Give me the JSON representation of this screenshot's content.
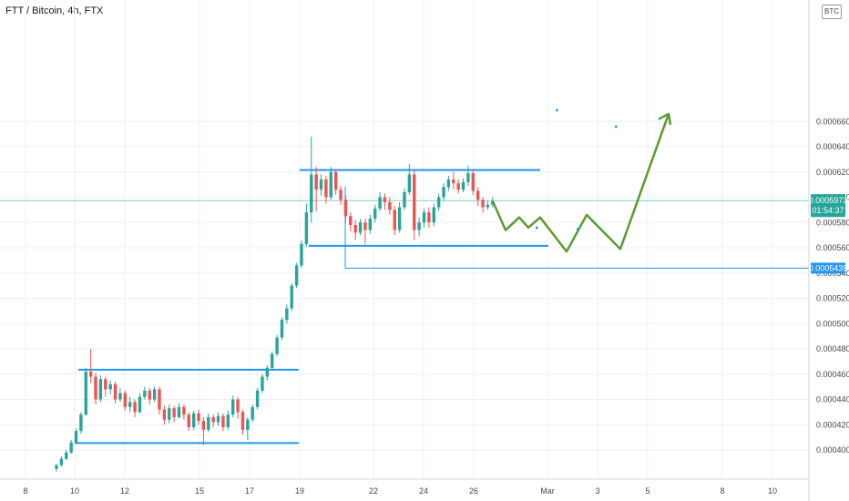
{
  "header": {
    "title": "FTT / Bitcoin, 4h, FTX",
    "currency_badge": "BTC"
  },
  "colors": {
    "up": "#26a69a",
    "down": "#ef5350",
    "channel": "#2196f3",
    "projection": "#5b9b32",
    "price_line": "#26a69a",
    "grid": "#eef0f3"
  },
  "chart_data": {
    "type": "candlestick",
    "title": "FTT / Bitcoin, 4h, FTX",
    "x_tick_labels": [
      "8",
      "10",
      "12",
      "15",
      "17",
      "19",
      "22",
      "24",
      "26",
      "Mar",
      "3",
      "5",
      "8",
      "10"
    ],
    "y_tick_labels": [
      "0.0004000",
      "0.0004200",
      "0.0004400",
      "0.0004600",
      "0.0004800",
      "0.0005000",
      "0.0005200",
      "0.0005400",
      "0.0005600",
      "0.0005800",
      "0.0006000",
      "0.0006200",
      "0.0006400",
      "0.0006600"
    ],
    "y_range": [
      0.000386,
      0.000672
    ],
    "last_price": {
      "value": "0.0005973",
      "countdown": "01:54:37"
    },
    "marked_level": {
      "value": "0.0005439"
    },
    "candles": [
      [
        0.000385,
        0.000388,
        0.000383,
        0.000389
      ],
      [
        0.000388,
        0.000393,
        0.000387,
        0.000395
      ],
      [
        0.000393,
        0.000398,
        0.000392,
        0.0004
      ],
      [
        0.000398,
        0.000406,
        0.000397,
        0.000408
      ],
      [
        0.000406,
        0.000415,
        0.000405,
        0.000417
      ],
      [
        0.000415,
        0.000428,
        0.000413,
        0.00043
      ],
      [
        0.000428,
        0.000462,
        0.000427,
        0.000465
      ],
      [
        0.000462,
        0.000458,
        0.000453,
        0.00048
      ],
      [
        0.000458,
        0.00044,
        0.000436,
        0.000461
      ],
      [
        0.00044,
        0.000456,
        0.000438,
        0.000459
      ],
      [
        0.000456,
        0.000448,
        0.000442,
        0.000458
      ],
      [
        0.000448,
        0.000452,
        0.000444,
        0.000455
      ],
      [
        0.000452,
        0.00044,
        0.000437,
        0.000454
      ],
      [
        0.00044,
        0.000445,
        0.000438,
        0.000449
      ],
      [
        0.000445,
        0.000434,
        0.000431,
        0.000447
      ],
      [
        0.000434,
        0.000438,
        0.00043,
        0.000442
      ],
      [
        0.000438,
        0.00043,
        0.000426,
        0.00044
      ],
      [
        0.00043,
        0.000442,
        0.000429,
        0.000445
      ],
      [
        0.000442,
        0.000447,
        0.00044,
        0.00045
      ],
      [
        0.000447,
        0.00044,
        0.000436,
        0.000449
      ],
      [
        0.00044,
        0.000448,
        0.000438,
        0.00045
      ],
      [
        0.000448,
        0.000432,
        0.000428,
        0.00045
      ],
      [
        0.000432,
        0.000424,
        0.00042,
        0.000435
      ],
      [
        0.000424,
        0.000433,
        0.000421,
        0.000436
      ],
      [
        0.000433,
        0.000426,
        0.000422,
        0.000435
      ],
      [
        0.000426,
        0.000434,
        0.000425,
        0.000437
      ],
      [
        0.000434,
        0.000428,
        0.000424,
        0.000436
      ],
      [
        0.000428,
        0.000418,
        0.000415,
        0.00043
      ],
      [
        0.000418,
        0.000429,
        0.000416,
        0.000431
      ],
      [
        0.000429,
        0.000423,
        0.00042,
        0.000432
      ],
      [
        0.000423,
        0.000416,
        0.000404,
        0.000426
      ],
      [
        0.000416,
        0.000426,
        0.000414,
        0.000429
      ],
      [
        0.000426,
        0.000422,
        0.000418,
        0.000428
      ],
      [
        0.000422,
        0.000427,
        0.000419,
        0.00043
      ],
      [
        0.000427,
        0.000418,
        0.000415,
        0.000429
      ],
      [
        0.000418,
        0.000428,
        0.000416,
        0.000431
      ],
      [
        0.000428,
        0.00044,
        0.000426,
        0.000443
      ],
      [
        0.00044,
        0.00043,
        0.000425,
        0.000442
      ],
      [
        0.00043,
        0.000416,
        0.000412,
        0.000432
      ],
      [
        0.000416,
        0.000424,
        0.000408,
        0.000426
      ],
      [
        0.000424,
        0.000434,
        0.000422,
        0.000436
      ],
      [
        0.000434,
        0.000447,
        0.000432,
        0.000449
      ],
      [
        0.000447,
        0.000458,
        0.000445,
        0.00046
      ],
      [
        0.000458,
        0.000465,
        0.000455,
        0.000467
      ],
      [
        0.000465,
        0.000476,
        0.000463,
        0.000478
      ],
      [
        0.000476,
        0.000489,
        0.000474,
        0.000491
      ],
      [
        0.000489,
        0.000503,
        0.000487,
        0.000505
      ],
      [
        0.000503,
        0.000512,
        0.0005,
        0.000515
      ],
      [
        0.000512,
        0.00053,
        0.00051,
        0.000532
      ],
      [
        0.00053,
        0.000546,
        0.000528,
        0.000548
      ],
      [
        0.000546,
        0.000563,
        0.000544,
        0.000566
      ],
      [
        0.000563,
        0.000588,
        0.000561,
        0.000595
      ],
      [
        0.000588,
        0.000618,
        0.00058,
        0.000648
      ],
      [
        0.000618,
        0.000606,
        0.000589,
        0.000624
      ],
      [
        0.000606,
        0.000614,
        0.000601,
        0.000618
      ],
      [
        0.000614,
        0.0006,
        0.000595,
        0.000617
      ],
      [
        0.0006,
        0.00062,
        0.000598,
        0.000624
      ],
      [
        0.00062,
        0.000606,
        0.000602,
        0.000622
      ],
      [
        0.000606,
        0.000598,
        0.000594,
        0.000609
      ],
      [
        0.000598,
        0.000585,
        0.00058,
        0.000602
      ],
      [
        0.000585,
        0.000578,
        0.000573,
        0.000588
      ],
      [
        0.000578,
        0.000572,
        0.000566,
        0.000582
      ],
      [
        0.000572,
        0.00058,
        0.00057,
        0.000583
      ],
      [
        0.00058,
        0.000574,
        0.000563,
        0.000583
      ],
      [
        0.000574,
        0.000583,
        0.000571,
        0.000586
      ],
      [
        0.000583,
        0.000591,
        0.00058,
        0.000594
      ],
      [
        0.000591,
        0.0006,
        0.000589,
        0.000604
      ],
      [
        0.0006,
        0.000596,
        0.00059,
        0.000603
      ],
      [
        0.000596,
        0.00059,
        0.000586,
        0.0006
      ],
      [
        0.00059,
        0.000574,
        0.00057,
        0.000593
      ],
      [
        0.000574,
        0.000592,
        0.000572,
        0.000596
      ],
      [
        0.000592,
        0.000604,
        0.00059,
        0.000607
      ],
      [
        0.000604,
        0.000618,
        0.000602,
        0.000626
      ],
      [
        0.000618,
        0.000574,
        0.000566,
        0.000621
      ],
      [
        0.000574,
        0.00058,
        0.000569,
        0.000584
      ],
      [
        0.00058,
        0.000588,
        0.000576,
        0.000591
      ],
      [
        0.000588,
        0.00058,
        0.000576,
        0.000592
      ],
      [
        0.00058,
        0.000592,
        0.000577,
        0.000595
      ],
      [
        0.000592,
        0.0006,
        0.000589,
        0.000603
      ],
      [
        0.0006,
        0.000608,
        0.000597,
        0.000611
      ],
      [
        0.000608,
        0.000614,
        0.000605,
        0.000617
      ],
      [
        0.000614,
        0.000611,
        0.000606,
        0.00062
      ],
      [
        0.000611,
        0.000606,
        0.000603,
        0.000614
      ],
      [
        0.000606,
        0.000612,
        0.000604,
        0.000615
      ],
      [
        0.000612,
        0.000619,
        0.000609,
        0.000625
      ],
      [
        0.000619,
        0.000605,
        0.000602,
        0.000622
      ],
      [
        0.000605,
        0.000598,
        0.000593,
        0.000608
      ],
      [
        0.000598,
        0.000592,
        0.000588,
        0.0006
      ],
      [
        0.000592,
        0.000594,
        0.00059,
        0.000597
      ],
      [
        0.000594,
        0.000597,
        0.000592,
        0.0006
      ]
    ],
    "channels": [
      {
        "name": "lower-range-top",
        "price": 0.0004635
      },
      {
        "name": "lower-range-bottom",
        "price": 0.0004055
      },
      {
        "name": "upper-range-top",
        "price": 0.0006215
      },
      {
        "name": "upper-range-bottom",
        "price": 0.0005615
      }
    ],
    "projection_path": [
      0.0005967,
      0.000574,
      0.000584,
      0.000576,
      0.000584,
      0.000557,
      0.000586,
      0.000559,
      0.000666
    ],
    "scatter_dots": [
      0.000669,
      0.000656,
      0.000576,
      0.000575
    ]
  }
}
